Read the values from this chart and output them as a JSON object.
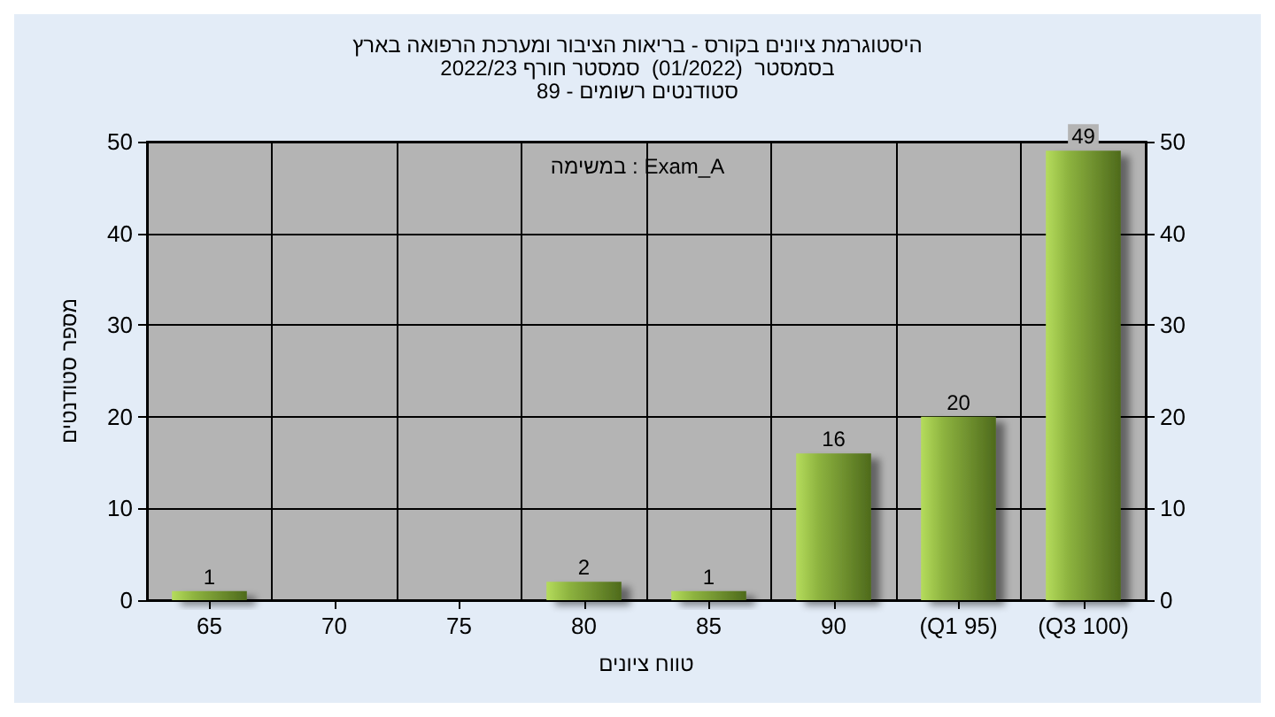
{
  "chart_data": {
    "type": "bar",
    "title": "היסטוגרמת ציונים בקורס - בריאות הציבור ומערכת הרפואה בארץ\nבסמסטר  (01/2022)  סמסטר חורף 2022/23\nסטודנטים רשומים - 89",
    "xlabel": "טווח ציונים",
    "ylabel": "מספר סטודנטים",
    "annotations": [
      "במשימה : Exam_A"
    ],
    "categories": [
      "65",
      "70",
      "75",
      "80",
      "85",
      "90",
      "(Q1 95)",
      "(Q3 100)"
    ],
    "values": [
      1,
      0,
      0,
      2,
      1,
      16,
      20,
      49
    ],
    "value_labels": [
      "1",
      null,
      null,
      "2",
      "1",
      "16",
      "20",
      "49"
    ],
    "color": "#8db33f",
    "ylim": [
      0,
      50
    ],
    "yticks": [
      0,
      10,
      20,
      30,
      40,
      50
    ],
    "y2lim": [
      0,
      50
    ],
    "y2ticks": [
      0,
      10,
      20,
      30,
      40,
      50
    ],
    "grid": true
  }
}
